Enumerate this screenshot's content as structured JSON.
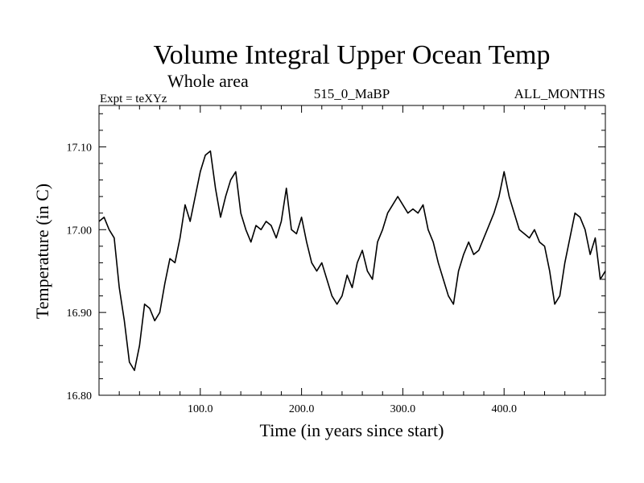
{
  "chart_data": {
    "type": "line",
    "title": "Volume Integral Upper Ocean Temp",
    "subtitle": "Whole area",
    "header_left": "Expt = teXYz",
    "header_center": "515_0_MaBP",
    "header_right": "ALL_MONTHS",
    "xlabel": "Time (in years since start)",
    "ylabel": "Temperature (in C)",
    "xlim": [
      0,
      500
    ],
    "ylim": [
      16.8,
      17.15
    ],
    "x_ticks": [
      100,
      200,
      300,
      400
    ],
    "x_tick_labels": [
      "100.0",
      "200.0",
      "300.0",
      "400.0"
    ],
    "y_ticks": [
      16.8,
      16.9,
      17.0,
      17.1
    ],
    "y_tick_labels": [
      "16.80",
      "16.90",
      "17.00",
      "17.10"
    ],
    "grid": false,
    "series": [
      {
        "color": "#000000",
        "x": [
          0,
          5,
          10,
          15,
          20,
          25,
          30,
          35,
          40,
          45,
          50,
          55,
          60,
          65,
          70,
          75,
          80,
          85,
          90,
          95,
          100,
          105,
          110,
          115,
          120,
          125,
          130,
          135,
          140,
          145,
          150,
          155,
          160,
          165,
          170,
          175,
          180,
          185,
          190,
          195,
          200,
          205,
          210,
          215,
          220,
          225,
          230,
          235,
          240,
          245,
          250,
          255,
          260,
          265,
          270,
          275,
          280,
          285,
          290,
          295,
          300,
          305,
          310,
          315,
          320,
          325,
          330,
          335,
          340,
          345,
          350,
          355,
          360,
          365,
          370,
          375,
          380,
          385,
          390,
          395,
          400,
          405,
          410,
          415,
          420,
          425,
          430,
          435,
          440,
          445,
          450,
          455,
          460,
          465,
          470,
          475,
          480,
          485,
          490,
          495,
          500
        ],
        "values": [
          17.01,
          17.015,
          17.0,
          16.99,
          16.93,
          16.89,
          16.84,
          16.83,
          16.86,
          16.91,
          16.905,
          16.89,
          16.9,
          16.935,
          16.965,
          16.96,
          16.99,
          17.03,
          17.01,
          17.04,
          17.07,
          17.09,
          17.095,
          17.05,
          17.015,
          17.04,
          17.06,
          17.07,
          17.02,
          17.0,
          16.985,
          17.005,
          17.0,
          17.01,
          17.005,
          16.99,
          17.01,
          17.05,
          17.0,
          16.995,
          17.015,
          16.985,
          16.96,
          16.95,
          16.96,
          16.94,
          16.92,
          16.91,
          16.92,
          16.945,
          16.93,
          16.96,
          16.975,
          16.95,
          16.94,
          16.985,
          17.0,
          17.02,
          17.03,
          17.04,
          17.03,
          17.02,
          17.025,
          17.02,
          17.03,
          17.0,
          16.985,
          16.96,
          16.94,
          16.92,
          16.91,
          16.95,
          16.97,
          16.985,
          16.97,
          16.975,
          16.99,
          17.005,
          17.02,
          17.04,
          17.07,
          17.04,
          17.02,
          17.0,
          16.995,
          16.99,
          17.0,
          16.985,
          16.98,
          16.95,
          16.91,
          16.92,
          16.96,
          16.99,
          17.02,
          17.015,
          17.0,
          16.97,
          16.99,
          16.94,
          16.95
        ]
      }
    ]
  }
}
